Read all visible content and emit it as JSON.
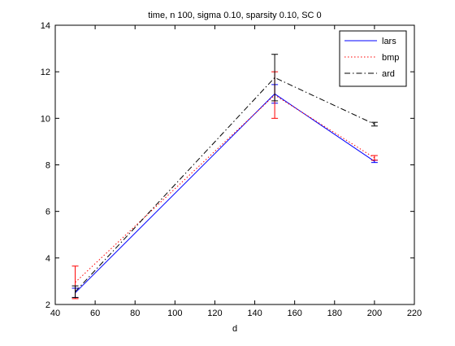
{
  "chart_data": {
    "type": "line",
    "title": "time, n 100, sigma 0.10, sparsity 0.10, SC 0",
    "xlabel": "d",
    "ylabel": "",
    "xlim": [
      40,
      220
    ],
    "ylim": [
      2,
      14
    ],
    "xticks": [
      40,
      60,
      80,
      100,
      120,
      140,
      160,
      180,
      200,
      220
    ],
    "yticks": [
      2,
      4,
      6,
      8,
      10,
      12,
      14
    ],
    "x": [
      50,
      150,
      200
    ],
    "grid": false,
    "legend_position": "top-right",
    "series": [
      {
        "name": "lars",
        "values": [
          2.5,
          11.05,
          8.15
        ],
        "err": [
          0.2,
          0.4,
          0.05
        ],
        "color": "#0000ff",
        "dash": "solid"
      },
      {
        "name": "bmp",
        "values": [
          2.95,
          11.0,
          8.3
        ],
        "err": [
          0.7,
          1.0,
          0.1
        ],
        "color": "#ff0000",
        "dash": "dotted"
      },
      {
        "name": "ard",
        "values": [
          2.55,
          11.75,
          9.75
        ],
        "err": [
          0.25,
          1.0,
          0.08
        ],
        "color": "#000000",
        "dash": "dashdot"
      }
    ]
  }
}
